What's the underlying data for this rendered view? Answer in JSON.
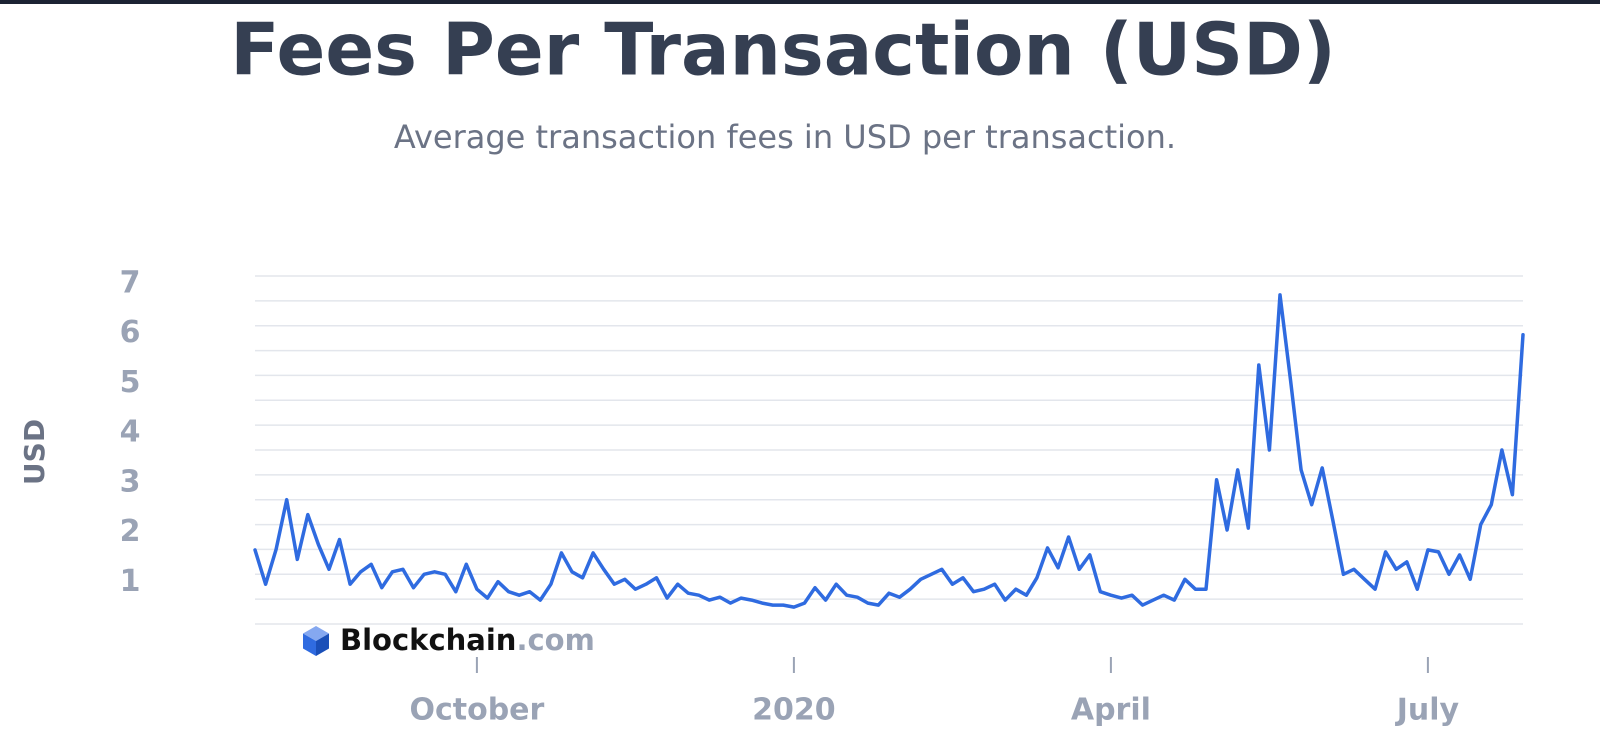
{
  "chart_data": {
    "type": "line",
    "title": "Fees Per Transaction (USD)",
    "subtitle": "Average transaction fees in USD per transaction.",
    "y_label": "USD",
    "watermark": {
      "brand": "Blockchain",
      "domain": ".com"
    },
    "color": "#2f6be0",
    "grid": true,
    "ylim": [
      0,
      7
    ],
    "yticks": [
      1,
      2,
      3,
      4,
      5,
      6,
      7
    ],
    "y_gridlines": [
      0,
      0.5,
      1,
      1.5,
      2,
      2.5,
      3,
      3.5,
      4,
      4.5,
      5,
      5.5,
      6,
      6.5,
      7
    ],
    "categories": [
      null,
      null,
      null,
      null,
      null,
      null,
      null,
      null,
      null,
      null,
      null,
      null,
      null,
      null,
      null,
      null,
      null,
      null,
      null,
      null,
      null,
      "October",
      null,
      null,
      null,
      null,
      null,
      null,
      null,
      null,
      null,
      null,
      null,
      null,
      null,
      null,
      null,
      null,
      null,
      null,
      null,
      null,
      null,
      null,
      null,
      null,
      null,
      null,
      null,
      null,
      null,
      "2020",
      null,
      null,
      null,
      null,
      null,
      null,
      null,
      null,
      null,
      null,
      null,
      null,
      null,
      null,
      null,
      null,
      null,
      null,
      null,
      null,
      null,
      null,
      null,
      null,
      null,
      null,
      null,
      null,
      null,
      "April",
      null,
      null,
      null,
      null,
      null,
      null,
      null,
      null,
      null,
      null,
      null,
      null,
      null,
      null,
      null,
      null,
      null,
      null,
      null,
      null,
      null,
      null,
      null,
      null,
      null,
      null,
      null,
      null,
      null,
      "July",
      null,
      null,
      null,
      null,
      null,
      null,
      null,
      null,
      null
    ],
    "values": [
      1.49,
      0.8,
      1.5,
      2.5,
      1.3,
      2.2,
      1.6,
      1.1,
      1.7,
      0.8,
      1.05,
      1.2,
      0.73,
      1.05,
      1.1,
      0.73,
      1.0,
      1.05,
      1.0,
      0.65,
      1.2,
      0.7,
      0.52,
      0.85,
      0.65,
      0.58,
      0.65,
      0.48,
      0.8,
      1.43,
      1.05,
      0.93,
      1.43,
      1.1,
      0.8,
      0.9,
      0.7,
      0.8,
      0.93,
      0.52,
      0.8,
      0.62,
      0.58,
      0.48,
      0.54,
      0.42,
      0.52,
      0.48,
      0.42,
      0.38,
      0.38,
      0.34,
      0.42,
      0.73,
      0.48,
      0.8,
      0.58,
      0.54,
      0.42,
      0.38,
      0.62,
      0.54,
      0.7,
      0.9,
      1.0,
      1.1,
      0.8,
      0.93,
      0.65,
      0.7,
      0.8,
      0.48,
      0.7,
      0.58,
      0.93,
      1.53,
      1.13,
      1.75,
      1.1,
      1.39,
      0.65,
      0.58,
      0.52,
      0.58,
      0.38,
      0.48,
      0.58,
      0.48,
      0.9,
      0.7,
      0.7,
      2.9,
      1.89,
      3.1,
      1.93,
      5.21,
      3.5,
      6.62,
      4.91,
      3.1,
      2.4,
      3.14,
      2.09,
      1.0,
      1.1,
      0.9,
      0.7,
      1.45,
      1.1,
      1.25,
      0.7,
      1.49,
      1.45,
      1.0,
      1.39,
      0.9,
      2.0,
      2.4,
      3.5,
      2.6,
      5.82
    ]
  }
}
